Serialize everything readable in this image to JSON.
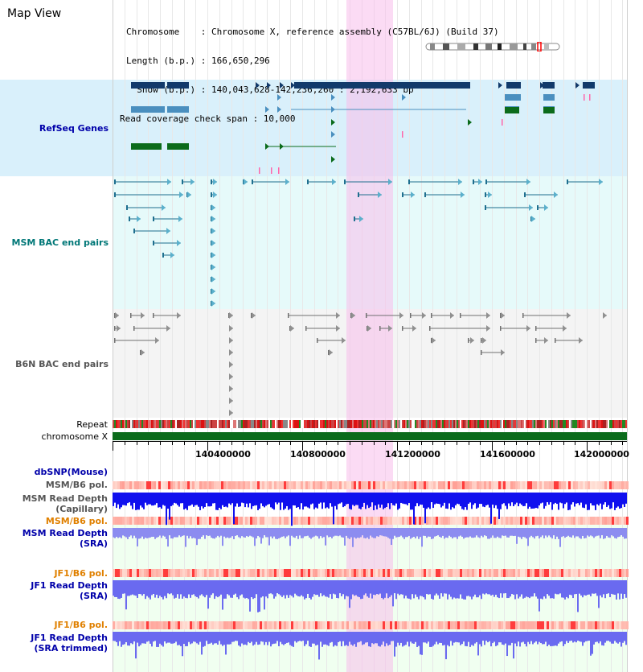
{
  "view_title": "Map View",
  "info": {
    "line1": "Chromosome    : Chromosome X, reference assembly (C57BL/6J) (Build 37)",
    "line2": "Length (b.p.) : 166,650,296",
    "line3": "  Show (b.p.) : 140,043,628-142,236,260 : 2,192,633 bp",
    "line4": "Read coverage check span : 10,000"
  },
  "tracks": {
    "refseq": "RefSeq Genes",
    "msm_bac": "MSM BAC end pairs",
    "b6n_bac": "B6N BAC end pairs",
    "repeat": "Repeat",
    "chromosome": "chromosome X",
    "dbsnp": "dbSNP(Mouse)",
    "msm_pol_cap": "MSM/B6 pol.",
    "msm_depth_cap_1": "MSM Read Depth",
    "msm_depth_cap_2": "(Capillary)",
    "msm_pol_sra": "MSM/B6 pol.",
    "msm_depth_sra_1": "MSM Read Depth",
    "msm_depth_sra_2": "(SRA)",
    "jf1_pol": "JF1/B6 pol.",
    "jf1_depth_1": "JF1 Read Depth",
    "jf1_depth_2": "(SRA)",
    "jf1_pol_trim": "JF1/B6 pol.",
    "jf1_depth_trim_1": "JF1 Read Depth",
    "jf1_depth_trim_2": "(SRA trimmed)"
  },
  "axis_ticks": [
    "140400000",
    "140800000",
    "141200000",
    "141600000",
    "142000000"
  ],
  "colors": {
    "refseq_bg": "#d9f0fb",
    "msm_bac_bg": "#e6fafa",
    "b6n_bac_bg": "#f4f4f4",
    "highlight": "#f8d2f0",
    "gene_dark": "#123a6b",
    "gene_mid": "#4a8fbf",
    "gene_green": "#0b6b1b",
    "msm_bac": "#1f6f8f",
    "b6n_bac": "#707070",
    "chromosome": "#0b6b1b",
    "depth_cap": "#1010ee",
    "depth_sra": "#8c8cf0",
    "depth_jf1": "#6a6af0",
    "label_blue": "#0000aa",
    "label_teal": "#007777",
    "label_gray": "#444444",
    "label_orange": "#e08000"
  }
}
